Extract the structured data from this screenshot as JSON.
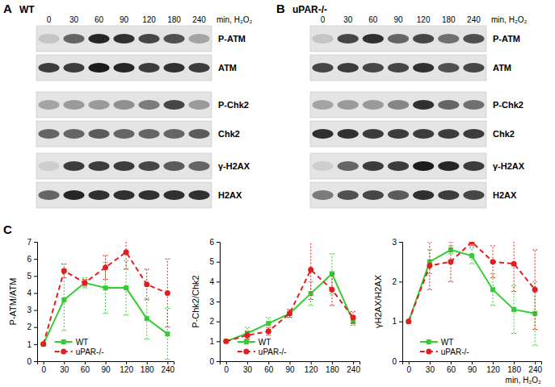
{
  "blots": [
    {
      "panel_label": "A",
      "title": "WT",
      "times": [
        0,
        30,
        60,
        90,
        120,
        180,
        240
      ],
      "time_label": "min, H₂O₂",
      "rows": [
        {
          "label": "P-ATM",
          "intensity": [
            0.15,
            0.6,
            0.9,
            0.85,
            0.75,
            0.7,
            0.3
          ]
        },
        {
          "label": "ATM",
          "intensity": [
            0.8,
            0.8,
            0.95,
            0.9,
            0.8,
            0.85,
            0.8
          ]
        },
        {
          "label": "P-Chk2",
          "intensity": [
            0.3,
            0.35,
            0.35,
            0.4,
            0.5,
            0.75,
            0.35
          ]
        },
        {
          "label": "Chk2",
          "intensity": [
            0.6,
            0.6,
            0.65,
            0.6,
            0.6,
            0.6,
            0.65
          ]
        },
        {
          "label": "γ-H2AX",
          "intensity": [
            0.1,
            0.8,
            0.8,
            0.8,
            0.75,
            0.65,
            0.6
          ]
        },
        {
          "label": "H2AX",
          "intensity": [
            0.6,
            0.9,
            0.85,
            0.85,
            0.85,
            0.85,
            0.85
          ]
        }
      ]
    },
    {
      "panel_label": "B",
      "title": "uPAR-/-",
      "times": [
        0,
        30,
        60,
        90,
        120,
        180,
        240
      ],
      "time_label": "min, H₂O₂",
      "rows": [
        {
          "label": "P-ATM",
          "intensity": [
            0.15,
            0.75,
            0.85,
            0.6,
            0.75,
            0.55,
            0.7
          ]
        },
        {
          "label": "ATM",
          "intensity": [
            0.75,
            0.8,
            0.75,
            0.75,
            0.85,
            0.7,
            0.75
          ]
        },
        {
          "label": "P-Chk2",
          "intensity": [
            0.3,
            0.35,
            0.35,
            0.45,
            0.85,
            0.6,
            0.55
          ]
        },
        {
          "label": "Chk2",
          "intensity": [
            0.85,
            0.85,
            0.8,
            0.8,
            0.8,
            0.8,
            0.8
          ]
        },
        {
          "label": "γ-H2AX",
          "intensity": [
            0.1,
            0.6,
            0.8,
            0.8,
            0.95,
            0.9,
            0.8
          ]
        },
        {
          "label": "H2AX",
          "intensity": [
            0.5,
            0.7,
            0.75,
            0.65,
            0.85,
            0.8,
            0.75
          ]
        }
      ]
    }
  ],
  "charts_panel_label": "C",
  "chart_data": [
    {
      "type": "line",
      "ylabel": "P-ATM/ATM",
      "categories": [
        "0",
        "30",
        "60",
        "90",
        "120",
        "180",
        "240"
      ],
      "ylim": [
        0,
        7
      ],
      "yticks": [
        0,
        1,
        2,
        3,
        4,
        5,
        6,
        7
      ],
      "grid": false,
      "legend": "lower left",
      "series": [
        {
          "name": "WT",
          "color": "#33cc33",
          "marker": "square",
          "line_style": "solid",
          "values": [
            1,
            3.6,
            4.6,
            4.3,
            4.3,
            2.5,
            1.6
          ],
          "errors": [
            0,
            1.8,
            0.3,
            1.5,
            1.6,
            1.2,
            1.5
          ]
        },
        {
          "name": "uPAR-/-",
          "color": "#e02020",
          "marker": "circle",
          "line_style": "dashed",
          "values": [
            1,
            5.3,
            4.6,
            5.5,
            6.4,
            4.5,
            4.0
          ],
          "errors": [
            0,
            0.4,
            0.2,
            0.7,
            1.0,
            0.9,
            2.0
          ]
        }
      ]
    },
    {
      "type": "line",
      "ylabel": "P-Chk2/Chk2",
      "categories": [
        "0",
        "30",
        "60",
        "90",
        "120",
        "180",
        "240"
      ],
      "ylim": [
        0,
        6
      ],
      "yticks": [
        0,
        1,
        2,
        3,
        4,
        5,
        6
      ],
      "grid": false,
      "legend": "lower left",
      "series": [
        {
          "name": "WT",
          "color": "#33cc33",
          "marker": "square",
          "line_style": "solid",
          "values": [
            1,
            1.4,
            1.9,
            2.4,
            3.4,
            4.4,
            2.0
          ],
          "errors": [
            0,
            0.3,
            0.3,
            0.2,
            0.6,
            1.0,
            0.2
          ]
        },
        {
          "name": "uPAR-/-",
          "color": "#e02020",
          "marker": "circle",
          "line_style": "dashed",
          "values": [
            1,
            1.3,
            1.5,
            2.4,
            4.6,
            3.6,
            2.2
          ],
          "errors": [
            0,
            0.2,
            0.2,
            0.2,
            1.5,
            0.8,
            0.3
          ]
        }
      ]
    },
    {
      "type": "line",
      "ylabel": "γH2AX/H2AX",
      "xlabel": "min, H₂O₂",
      "categories": [
        "0",
        "30",
        "60",
        "90",
        "120",
        "180",
        "240"
      ],
      "ylim": [
        0,
        3
      ],
      "yticks": [
        0,
        1,
        2,
        3
      ],
      "grid": false,
      "legend": "lower left",
      "series": [
        {
          "name": "WT",
          "color": "#33cc33",
          "marker": "square",
          "line_style": "solid",
          "values": [
            1,
            2.5,
            2.8,
            2.65,
            1.8,
            1.3,
            1.2
          ],
          "errors": [
            0,
            0.3,
            0.1,
            0.2,
            0.4,
            0.6,
            0.8
          ]
        },
        {
          "name": "uPAR-/-",
          "color": "#e02020",
          "marker": "circle",
          "line_style": "dashed",
          "values": [
            1,
            2.4,
            2.5,
            3.0,
            2.5,
            2.45,
            1.8
          ],
          "errors": [
            0,
            0.6,
            0.5,
            0.1,
            0.4,
            0.7,
            1.0
          ]
        }
      ]
    }
  ]
}
